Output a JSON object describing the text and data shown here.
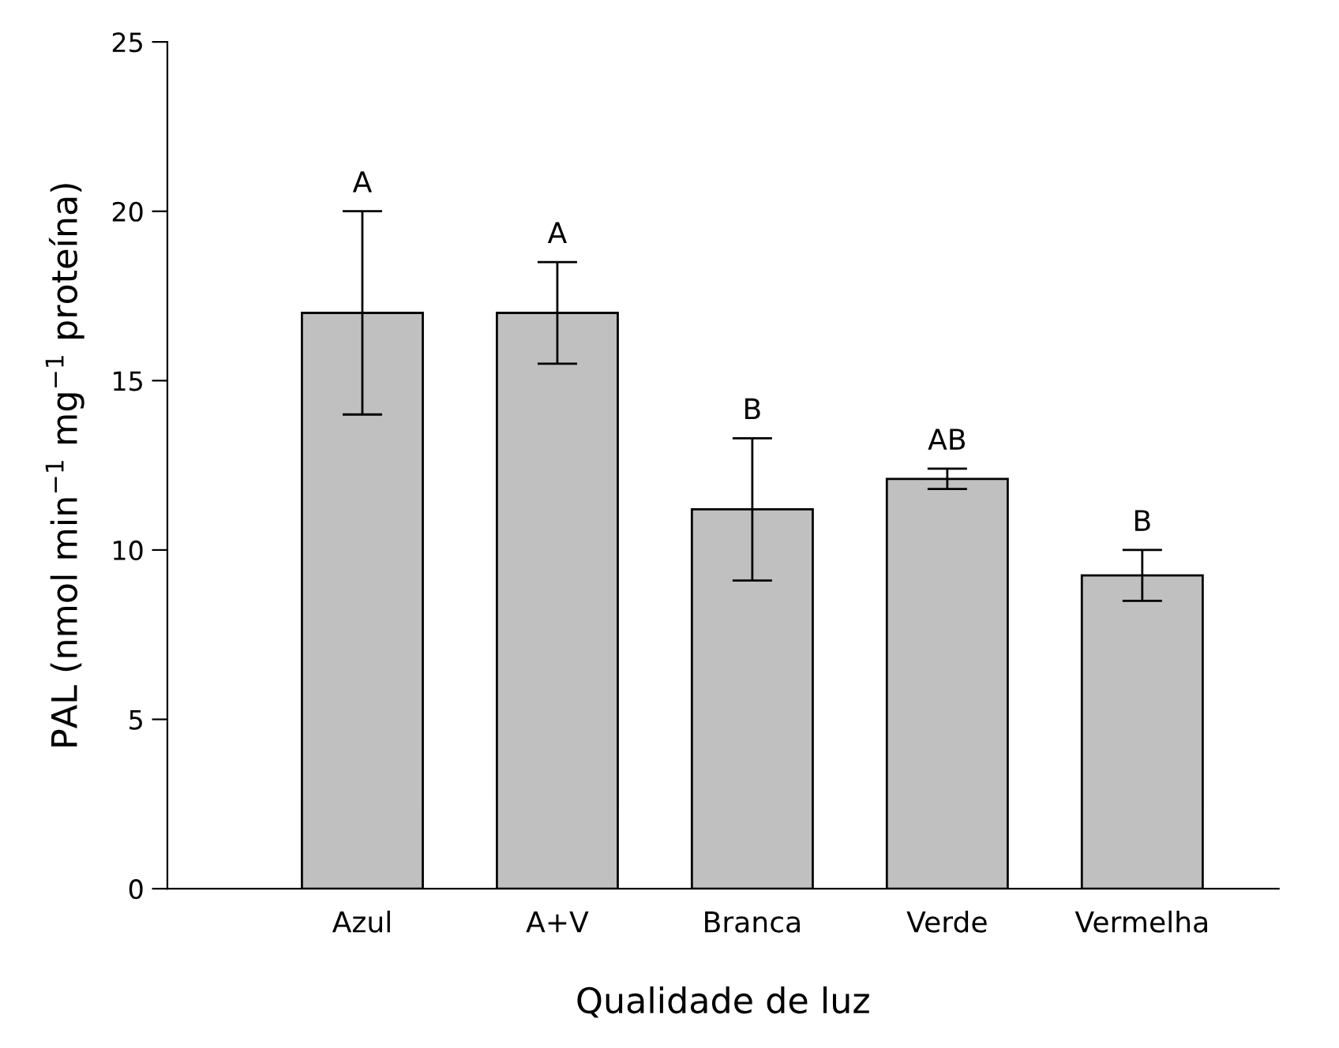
{
  "chart_data": {
    "type": "bar",
    "xlabel": "Qualidade de luz",
    "ylabel": "PAL (nmol min$^{−1}$ mg$^{−1}$ proteína)",
    "categories": [
      "Azul",
      "A+V",
      "Branca",
      "Verde",
      "Vermelha"
    ],
    "values": [
      17.0,
      17.0,
      11.2,
      12.1,
      9.25
    ],
    "errors": [
      3.0,
      1.5,
      2.1,
      0.3,
      0.75
    ],
    "color": "#c0c0c0",
    "ylim": [
      0,
      25
    ],
    "yticks": [
      0,
      5,
      10,
      15,
      20,
      25
    ],
    "grid": false,
    "annotations": [
      {
        "text": "A",
        "x": "Azul",
        "y": 20.0
      },
      {
        "text": "A",
        "x": "A+V",
        "y": 18.5
      },
      {
        "text": "B",
        "x": "Branca",
        "y": 13.3
      },
      {
        "text": "AB",
        "x": "Verde",
        "y": 12.4
      },
      {
        "text": "B",
        "x": "Vermelha",
        "y": 10.0
      }
    ]
  }
}
